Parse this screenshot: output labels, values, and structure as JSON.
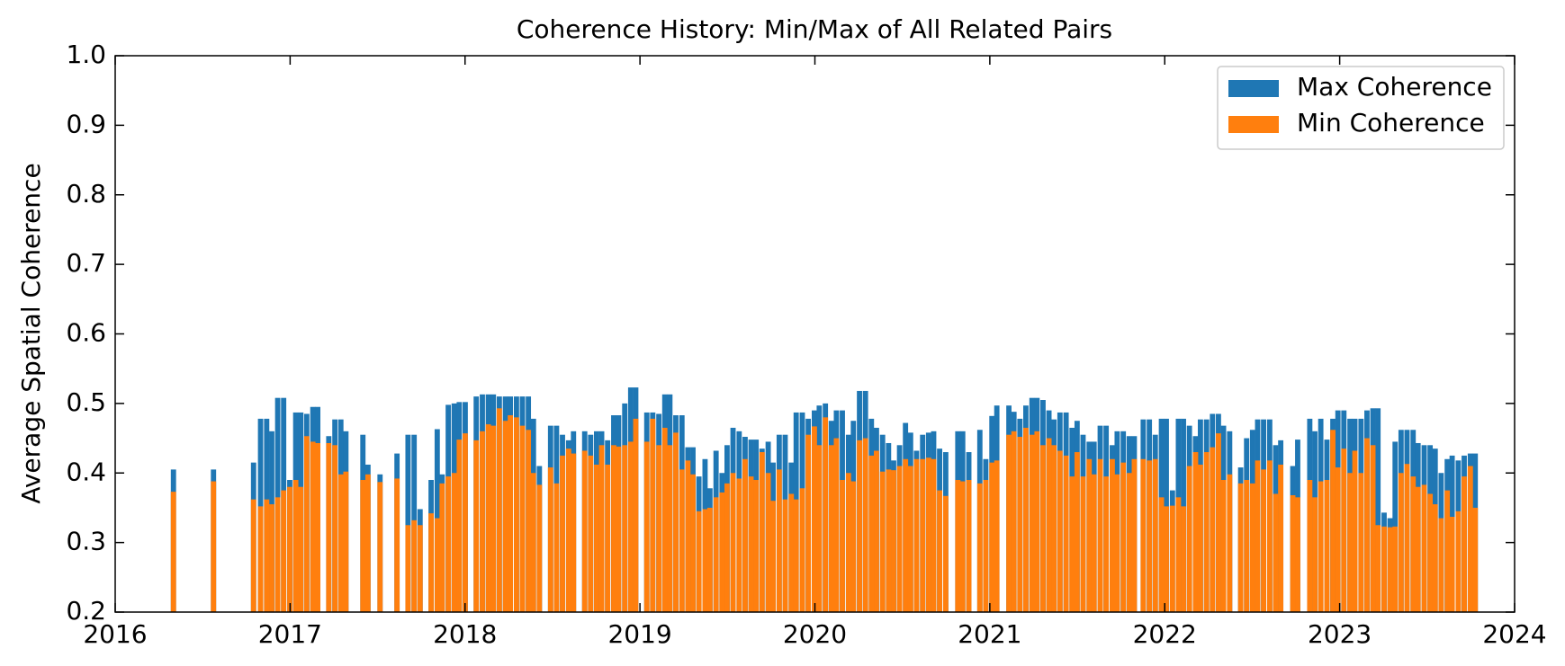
{
  "chart_data": {
    "type": "bar",
    "title": "Coherence History: Min/Max of All Related Pairs",
    "y_label": "Average Spatial Coherence",
    "x": [
      2016.333,
      2016.562,
      2016.791,
      2016.831,
      2016.866,
      2016.895,
      2016.929,
      2016.963,
      2016.998,
      2017.032,
      2017.061,
      2017.095,
      2017.13,
      2017.158,
      2017.221,
      2017.256,
      2017.29,
      2017.319,
      2017.416,
      2017.445,
      2017.514,
      2017.611,
      2017.674,
      2017.709,
      2017.743,
      2017.806,
      2017.841,
      2017.869,
      2017.904,
      2017.938,
      2017.967,
      2018.001,
      2018.064,
      2018.099,
      2018.133,
      2018.162,
      2018.196,
      2018.231,
      2018.259,
      2018.294,
      2018.328,
      2018.362,
      2018.391,
      2018.425,
      2018.489,
      2018.523,
      2018.557,
      2018.592,
      2018.62,
      2018.684,
      2018.718,
      2018.752,
      2018.781,
      2018.815,
      2018.85,
      2018.878,
      2018.913,
      2018.947,
      2018.976,
      2019.039,
      2019.073,
      2019.108,
      2019.142,
      2019.171,
      2019.205,
      2019.24,
      2019.274,
      2019.303,
      2019.337,
      2019.372,
      2019.4,
      2019.435,
      2019.469,
      2019.498,
      2019.532,
      2019.567,
      2019.601,
      2019.635,
      2019.664,
      2019.698,
      2019.733,
      2019.761,
      2019.796,
      2019.83,
      2019.865,
      2019.893,
      2019.928,
      2019.962,
      2019.997,
      2020.025,
      2020.06,
      2020.094,
      2020.123,
      2020.157,
      2020.192,
      2020.22,
      2020.255,
      2020.289,
      2020.323,
      2020.352,
      2020.387,
      2020.421,
      2020.45,
      2020.484,
      2020.518,
      2020.547,
      2020.581,
      2020.616,
      2020.65,
      2020.679,
      2020.713,
      2020.748,
      2020.817,
      2020.845,
      2020.88,
      2020.943,
      2020.977,
      2021.012,
      2021.04,
      2021.109,
      2021.138,
      2021.172,
      2021.206,
      2021.241,
      2021.27,
      2021.304,
      2021.338,
      2021.367,
      2021.401,
      2021.436,
      2021.47,
      2021.499,
      2021.533,
      2021.568,
      2021.596,
      2021.631,
      2021.665,
      2021.7,
      2021.728,
      2021.763,
      2021.797,
      2021.826,
      2021.877,
      2021.912,
      2021.946,
      2021.981,
      2022.009,
      2022.044,
      2022.078,
      2022.107,
      2022.141,
      2022.176,
      2022.204,
      2022.239,
      2022.273,
      2022.307,
      2022.336,
      2022.371,
      2022.434,
      2022.468,
      2022.502,
      2022.531,
      2022.565,
      2022.6,
      2022.634,
      2022.663,
      2022.732,
      2022.76,
      2022.829,
      2022.858,
      2022.892,
      2022.927,
      2022.961,
      2022.99,
      2023.024,
      2023.059,
      2023.087,
      2023.122,
      2023.156,
      2023.19,
      2023.219,
      2023.254,
      2023.288,
      2023.317,
      2023.351,
      2023.385,
      2023.42,
      2023.448,
      2023.483,
      2023.517,
      2023.546,
      2023.58,
      2023.615,
      2023.643,
      2023.678,
      2023.712,
      2023.747,
      2023.775
    ],
    "series": [
      {
        "name": "Max Coherence",
        "color": "#1f77b4",
        "values": [
          0.405,
          0.405,
          0.415,
          0.478,
          0.478,
          0.46,
          0.508,
          0.508,
          0.39,
          0.487,
          0.487,
          0.485,
          0.495,
          0.495,
          0.453,
          0.477,
          0.477,
          0.46,
          0.455,
          0.412,
          0.398,
          0.428,
          0.455,
          0.455,
          0.348,
          0.39,
          0.463,
          0.398,
          0.498,
          0.5,
          0.502,
          0.502,
          0.51,
          0.513,
          0.513,
          0.513,
          0.51,
          0.51,
          0.51,
          0.51,
          0.51,
          0.51,
          0.478,
          0.41,
          0.468,
          0.468,
          0.455,
          0.447,
          0.46,
          0.46,
          0.455,
          0.46,
          0.46,
          0.447,
          0.483,
          0.483,
          0.5,
          0.523,
          0.523,
          0.487,
          0.487,
          0.485,
          0.513,
          0.513,
          0.483,
          0.483,
          0.437,
          0.437,
          0.395,
          0.42,
          0.378,
          0.432,
          0.4,
          0.44,
          0.465,
          0.46,
          0.452,
          0.448,
          0.448,
          0.435,
          0.445,
          0.415,
          0.455,
          0.455,
          0.415,
          0.487,
          0.487,
          0.478,
          0.49,
          0.497,
          0.5,
          0.475,
          0.49,
          0.49,
          0.455,
          0.475,
          0.518,
          0.518,
          0.478,
          0.465,
          0.455,
          0.443,
          0.418,
          0.44,
          0.472,
          0.458,
          0.432,
          0.455,
          0.458,
          0.46,
          0.435,
          0.43,
          0.46,
          0.46,
          0.43,
          0.462,
          0.42,
          0.482,
          0.497,
          0.497,
          0.488,
          0.478,
          0.497,
          0.508,
          0.508,
          0.505,
          0.49,
          0.477,
          0.487,
          0.487,
          0.465,
          0.475,
          0.455,
          0.445,
          0.445,
          0.468,
          0.468,
          0.44,
          0.46,
          0.46,
          0.453,
          0.453,
          0.477,
          0.477,
          0.455,
          0.478,
          0.478,
          0.375,
          0.478,
          0.478,
          0.468,
          0.453,
          0.477,
          0.477,
          0.485,
          0.485,
          0.468,
          0.46,
          0.408,
          0.45,
          0.462,
          0.477,
          0.477,
          0.477,
          0.44,
          0.447,
          0.41,
          0.448,
          0.478,
          0.46,
          0.478,
          0.448,
          0.478,
          0.49,
          0.49,
          0.478,
          0.478,
          0.478,
          0.49,
          0.493,
          0.493,
          0.343,
          0.335,
          0.445,
          0.462,
          0.462,
          0.462,
          0.443,
          0.44,
          0.44,
          0.435,
          0.4,
          0.42,
          0.425,
          0.418,
          0.425,
          0.428,
          0.428
        ]
      },
      {
        "name": "Min Coherence",
        "color": "#ff7f0e",
        "values": [
          0.373,
          0.388,
          0.362,
          0.352,
          0.362,
          0.355,
          0.365,
          0.375,
          0.38,
          0.39,
          0.38,
          0.453,
          0.445,
          0.443,
          0.443,
          0.44,
          0.398,
          0.402,
          0.39,
          0.398,
          0.387,
          0.392,
          0.325,
          0.332,
          0.325,
          0.342,
          0.335,
          0.385,
          0.395,
          0.4,
          0.448,
          0.457,
          0.447,
          0.46,
          0.47,
          0.468,
          0.493,
          0.475,
          0.483,
          0.48,
          0.468,
          0.462,
          0.4,
          0.383,
          0.408,
          0.385,
          0.425,
          0.435,
          0.428,
          0.432,
          0.425,
          0.412,
          0.44,
          0.412,
          0.44,
          0.438,
          0.44,
          0.445,
          0.478,
          0.445,
          0.478,
          0.44,
          0.465,
          0.44,
          0.458,
          0.405,
          0.418,
          0.398,
          0.345,
          0.348,
          0.35,
          0.365,
          0.372,
          0.385,
          0.4,
          0.392,
          0.42,
          0.395,
          0.39,
          0.43,
          0.4,
          0.36,
          0.405,
          0.362,
          0.37,
          0.362,
          0.378,
          0.455,
          0.467,
          0.44,
          0.48,
          0.44,
          0.45,
          0.39,
          0.4,
          0.388,
          0.447,
          0.45,
          0.425,
          0.432,
          0.402,
          0.405,
          0.404,
          0.41,
          0.42,
          0.41,
          0.42,
          0.42,
          0.422,
          0.42,
          0.375,
          0.367,
          0.39,
          0.388,
          0.39,
          0.385,
          0.39,
          0.415,
          0.418,
          0.455,
          0.46,
          0.452,
          0.465,
          0.455,
          0.46,
          0.44,
          0.45,
          0.44,
          0.432,
          0.425,
          0.395,
          0.43,
          0.395,
          0.42,
          0.398,
          0.42,
          0.395,
          0.42,
          0.398,
          0.415,
          0.4,
          0.42,
          0.42,
          0.418,
          0.42,
          0.365,
          0.352,
          0.353,
          0.365,
          0.352,
          0.41,
          0.43,
          0.412,
          0.43,
          0.437,
          0.457,
          0.39,
          0.398,
          0.385,
          0.39,
          0.385,
          0.418,
          0.405,
          0.418,
          0.37,
          0.412,
          0.368,
          0.365,
          0.39,
          0.365,
          0.388,
          0.39,
          0.462,
          0.408,
          0.435,
          0.4,
          0.432,
          0.4,
          0.45,
          0.44,
          0.325,
          0.323,
          0.322,
          0.323,
          0.4,
          0.413,
          0.395,
          0.38,
          0.383,
          0.37,
          0.355,
          0.335,
          0.375,
          0.337,
          0.345,
          0.395,
          0.41,
          0.35
        ]
      }
    ],
    "xlim": [
      2016,
      2024
    ],
    "xticks": [
      2016,
      2017,
      2018,
      2019,
      2020,
      2021,
      2022,
      2023,
      2024
    ],
    "ylim": [
      0.2,
      1.0
    ],
    "yticks": [
      {
        "value": 0.2,
        "label": "0.2"
      },
      {
        "value": 0.3,
        "label": "0.3"
      },
      {
        "value": 0.4,
        "label": "0.4"
      },
      {
        "value": 0.5,
        "label": "0.5"
      },
      {
        "value": 0.6,
        "label": "0.6"
      },
      {
        "value": 0.7,
        "label": "0.7"
      },
      {
        "value": 0.8,
        "label": "0.8"
      },
      {
        "value": 0.9,
        "label": "0.9"
      },
      {
        "value": 1.0,
        "label": "1.0"
      }
    ],
    "legend": "upper right",
    "grid": false
  }
}
